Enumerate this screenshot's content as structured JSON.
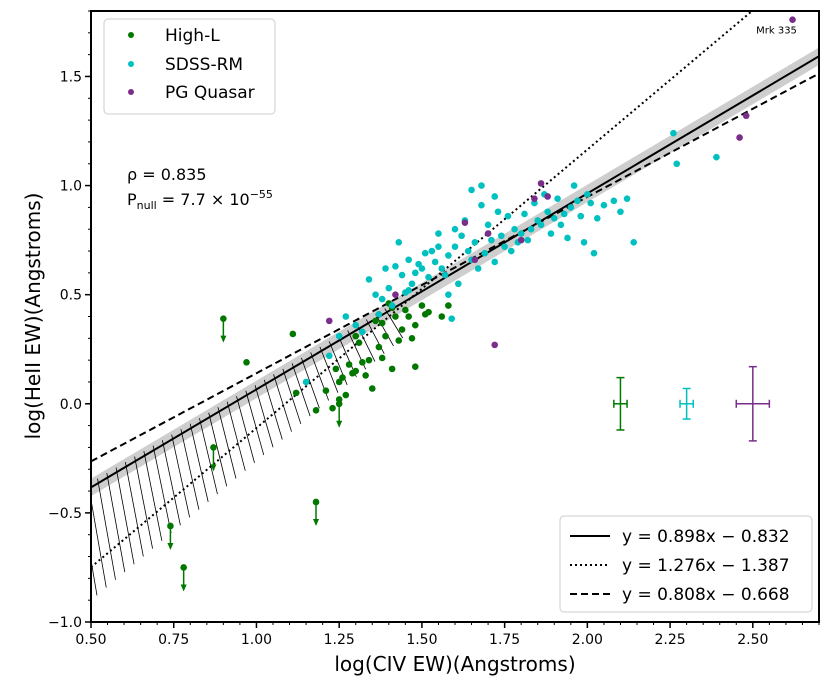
{
  "chart_data": {
    "type": "scatter",
    "xlabel": "log(CIV EW)(Angstroms)",
    "ylabel": "log(HeII EW)(Angstroms)",
    "xlim": [
      0.5,
      2.7
    ],
    "ylim": [
      -1.0,
      1.8
    ],
    "xticks": [
      "0.50",
      "0.75",
      "1.00",
      "1.25",
      "1.50",
      "1.75",
      "2.00",
      "2.25",
      "2.50"
    ],
    "yticks": [
      "−1.0",
      "−0.5",
      "0.0",
      "0.5",
      "1.0",
      "1.5"
    ],
    "legend_position": "top-left",
    "fit_legend_position": "bottom-right",
    "correlation": {
      "rho_text": "ρ = 0.835",
      "pnull_text": "P_null = 7.7 × 10^−55"
    },
    "point_annotation": {
      "text": "Mrk 335",
      "x": 2.62,
      "y": 1.76
    },
    "series": [
      {
        "name": "High-L",
        "color": "#007800",
        "points": [
          [
            0.97,
            0.19
          ],
          [
            1.11,
            0.32
          ],
          [
            1.12,
            0.05
          ],
          [
            1.18,
            -0.03
          ],
          [
            1.21,
            0.06
          ],
          [
            1.23,
            -0.02
          ],
          [
            1.25,
            0.02
          ],
          [
            1.26,
            0.12
          ],
          [
            1.27,
            0.04
          ],
          [
            1.28,
            0.18
          ],
          [
            1.29,
            0.14
          ],
          [
            1.3,
            0.15
          ],
          [
            1.3,
            0.31
          ],
          [
            1.31,
            0.28
          ],
          [
            1.32,
            0.19
          ],
          [
            1.33,
            0.13
          ],
          [
            1.34,
            0.2
          ],
          [
            1.35,
            0.07
          ],
          [
            1.36,
            0.38
          ],
          [
            1.37,
            0.26
          ],
          [
            1.38,
            0.37
          ],
          [
            1.39,
            0.31
          ],
          [
            1.4,
            0.46
          ],
          [
            1.41,
            0.44
          ],
          [
            1.41,
            0.16
          ],
          [
            1.42,
            0.4
          ],
          [
            1.43,
            0.29
          ],
          [
            1.44,
            0.34
          ],
          [
            1.45,
            0.43
          ],
          [
            1.46,
            0.4
          ],
          [
            1.47,
            0.3
          ],
          [
            1.48,
            0.17
          ],
          [
            1.48,
            0.36
          ],
          [
            1.5,
            0.45
          ],
          [
            1.51,
            0.41
          ],
          [
            1.52,
            0.42
          ],
          [
            1.56,
            0.4
          ],
          [
            1.58,
            0.45
          ],
          [
            1.38,
            0.21
          ],
          [
            1.25,
            0.1
          ],
          [
            1.24,
            0.16
          ]
        ],
        "upper_limits": [
          [
            0.9,
            0.39
          ],
          [
            0.87,
            -0.2
          ],
          [
            0.74,
            -0.56
          ],
          [
            0.78,
            -0.75
          ],
          [
            1.18,
            -0.45
          ],
          [
            1.25,
            0.0
          ]
        ],
        "error_bar": {
          "x": 2.1,
          "y": 0.0,
          "xerr": 0.02,
          "yerr": 0.12
        }
      },
      {
        "name": "SDSS-RM",
        "color": "#00c0c0",
        "points": [
          [
            1.15,
            0.1
          ],
          [
            1.22,
            0.22
          ],
          [
            1.25,
            0.31
          ],
          [
            1.27,
            0.4
          ],
          [
            1.3,
            0.36
          ],
          [
            1.32,
            0.33
          ],
          [
            1.34,
            0.57
          ],
          [
            1.36,
            0.5
          ],
          [
            1.37,
            0.41
          ],
          [
            1.38,
            0.48
          ],
          [
            1.39,
            0.62
          ],
          [
            1.4,
            0.53
          ],
          [
            1.41,
            0.45
          ],
          [
            1.42,
            0.63
          ],
          [
            1.43,
            0.74
          ],
          [
            1.44,
            0.59
          ],
          [
            1.45,
            0.51
          ],
          [
            1.46,
            0.66
          ],
          [
            1.47,
            0.55
          ],
          [
            1.48,
            0.6
          ],
          [
            1.49,
            0.64
          ],
          [
            1.5,
            0.62
          ],
          [
            1.51,
            0.69
          ],
          [
            1.52,
            0.58
          ],
          [
            1.53,
            0.7
          ],
          [
            1.54,
            0.65
          ],
          [
            1.55,
            0.78
          ],
          [
            1.56,
            0.62
          ],
          [
            1.57,
            0.59
          ],
          [
            1.58,
            0.68
          ],
          [
            1.59,
            0.39
          ],
          [
            1.6,
            0.72
          ],
          [
            1.61,
            0.55
          ],
          [
            1.62,
            0.77
          ],
          [
            1.63,
            0.84
          ],
          [
            1.64,
            0.7
          ],
          [
            1.65,
            0.66
          ],
          [
            1.66,
            0.74
          ],
          [
            1.67,
            0.62
          ],
          [
            1.68,
            0.91
          ],
          [
            1.69,
            0.69
          ],
          [
            1.7,
            0.82
          ],
          [
            1.71,
            0.75
          ],
          [
            1.72,
            0.65
          ],
          [
            1.73,
            0.88
          ],
          [
            1.74,
            0.77
          ],
          [
            1.75,
            0.72
          ],
          [
            1.76,
            0.86
          ],
          [
            1.77,
            0.7
          ],
          [
            1.78,
            0.8
          ],
          [
            1.79,
            0.74
          ],
          [
            1.8,
            0.78
          ],
          [
            1.81,
            0.87
          ],
          [
            1.82,
            0.75
          ],
          [
            1.83,
            0.8
          ],
          [
            1.84,
            0.92
          ],
          [
            1.85,
            0.84
          ],
          [
            1.86,
            0.82
          ],
          [
            1.87,
            0.96
          ],
          [
            1.88,
            0.88
          ],
          [
            1.89,
            0.78
          ],
          [
            1.9,
            0.85
          ],
          [
            1.91,
            0.94
          ],
          [
            1.92,
            0.82
          ],
          [
            1.93,
            0.87
          ],
          [
            1.94,
            0.76
          ],
          [
            1.95,
            0.9
          ],
          [
            1.96,
            1.0
          ],
          [
            1.97,
            0.93
          ],
          [
            1.98,
            0.86
          ],
          [
            1.99,
            0.74
          ],
          [
            2.0,
            0.96
          ],
          [
            2.01,
            0.92
          ],
          [
            2.02,
            0.69
          ],
          [
            2.03,
            0.85
          ],
          [
            2.05,
            0.91
          ],
          [
            2.08,
            0.93
          ],
          [
            2.1,
            0.88
          ],
          [
            2.12,
            0.94
          ],
          [
            2.14,
            0.74
          ],
          [
            2.26,
            1.24
          ],
          [
            2.27,
            1.1
          ],
          [
            2.39,
            1.13
          ],
          [
            1.65,
            0.98
          ],
          [
            1.68,
            1.0
          ],
          [
            1.72,
            0.95
          ],
          [
            1.6,
            0.8
          ],
          [
            1.55,
            0.72
          ],
          [
            1.46,
            0.52
          ],
          [
            1.58,
            0.5
          ]
        ],
        "error_bar": {
          "x": 2.3,
          "y": 0.0,
          "xerr": 0.02,
          "yerr": 0.07
        }
      },
      {
        "name": "PG Quasar",
        "color": "#7b2d8a",
        "points": [
          [
            2.62,
            1.76
          ],
          [
            2.48,
            1.32
          ],
          [
            2.46,
            1.22
          ],
          [
            1.72,
            0.27
          ],
          [
            1.22,
            0.38
          ],
          [
            1.42,
            0.5
          ],
          [
            1.63,
            0.83
          ],
          [
            1.84,
            0.94
          ],
          [
            1.88,
            0.95
          ],
          [
            1.86,
            1.01
          ],
          [
            1.66,
            0.66
          ],
          [
            1.8,
            0.75
          ],
          [
            1.7,
            0.78
          ]
        ],
        "error_bar": {
          "x": 2.5,
          "y": 0.0,
          "xerr": 0.05,
          "yerr": 0.17
        }
      }
    ],
    "fit_lines": [
      {
        "label": "y = 0.898x − 0.832",
        "slope": 0.898,
        "intercept": -0.832,
        "style": "solid",
        "band": 0.04
      },
      {
        "label": "y = 1.276x − 1.387",
        "slope": 1.276,
        "intercept": -1.387,
        "style": "dotted",
        "hatched": true
      },
      {
        "label": "y = 0.808x − 0.668",
        "slope": 0.808,
        "intercept": -0.668,
        "style": "dashed"
      }
    ]
  }
}
